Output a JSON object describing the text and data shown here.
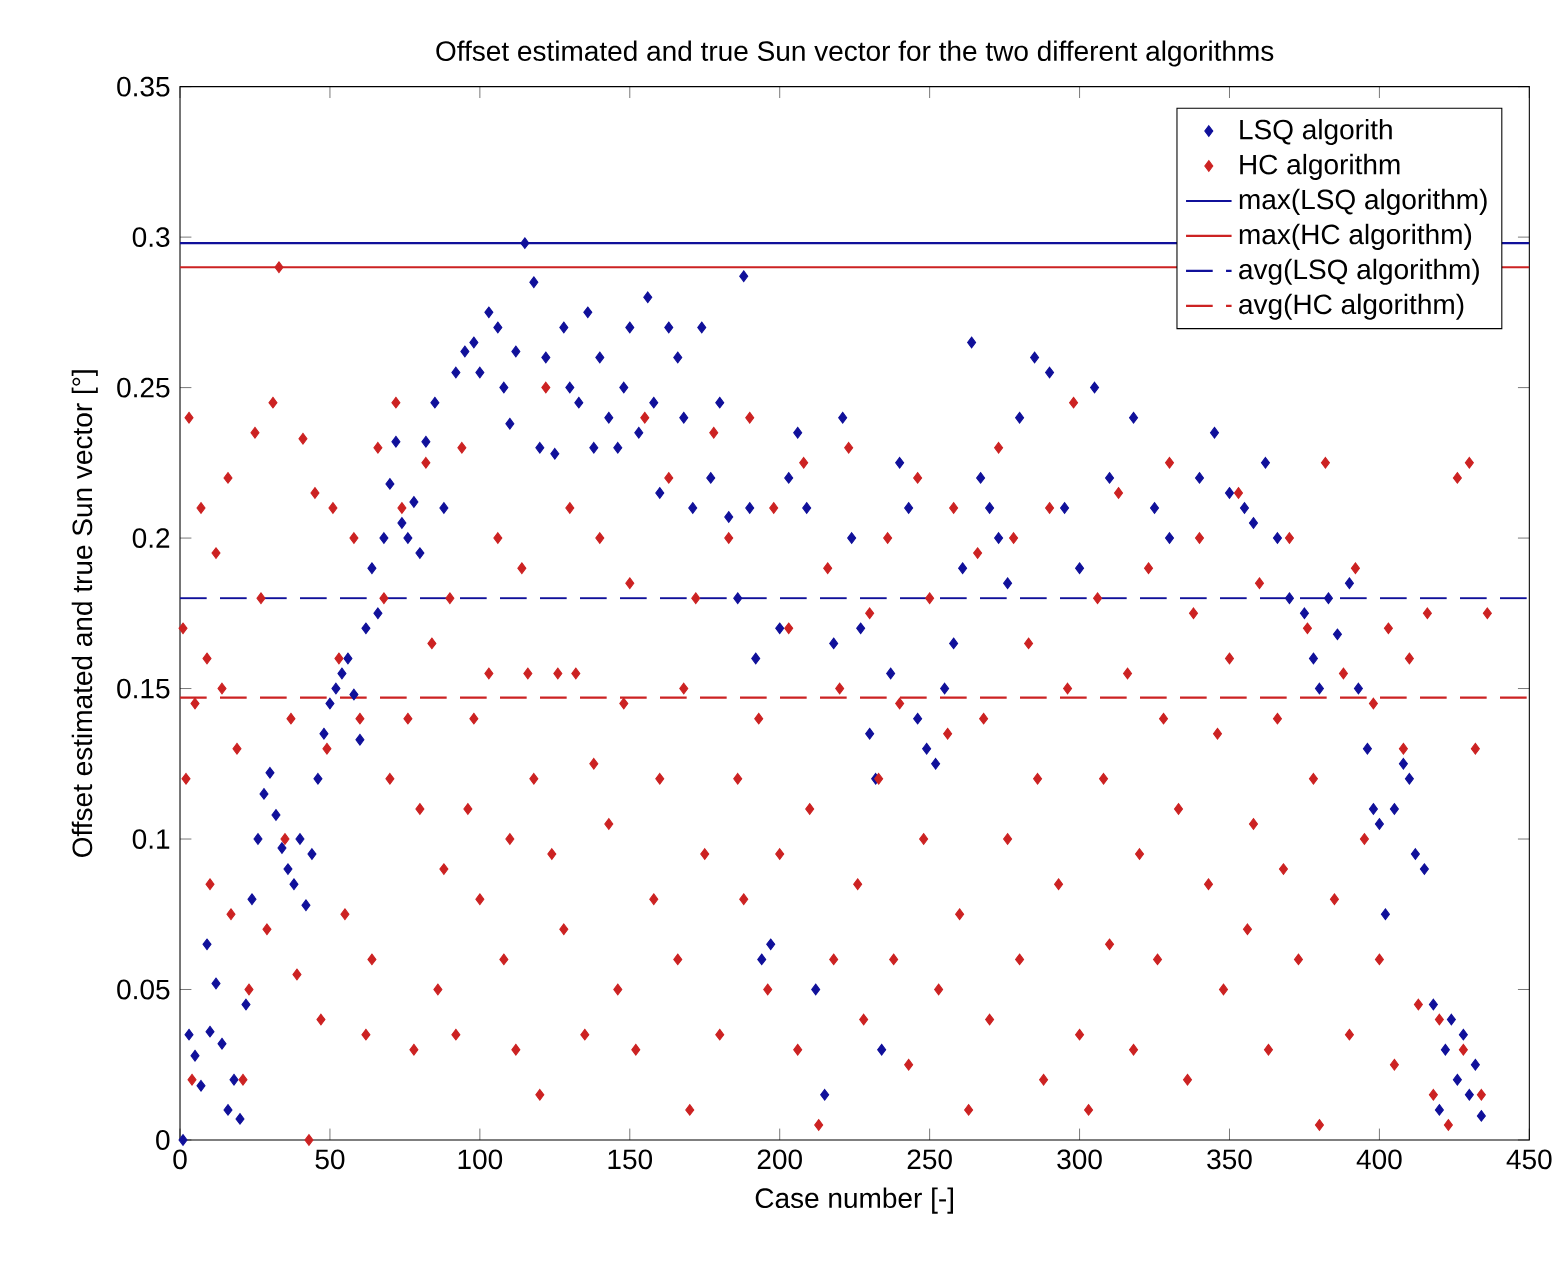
{
  "chart_data": {
    "type": "scatter",
    "title": "Offset estimated and true Sun vector for the two different algorithms",
    "xlabel": "Case number [-]",
    "ylabel": "Offset estimated and true Sun vector [°]",
    "xlim": [
      0,
      450
    ],
    "xticks": [
      0,
      50,
      100,
      150,
      200,
      250,
      300,
      350,
      400,
      450
    ],
    "ylim": [
      0,
      0.35
    ],
    "yticks": [
      0,
      0.05,
      0.1,
      0.15,
      0.2,
      0.25,
      0.3,
      0.35
    ],
    "marker": "diamond",
    "legend": "top right",
    "series": [
      {
        "name": "LSQ algorith",
        "color": "#10109a",
        "x": [
          1,
          3,
          5,
          7,
          9,
          10,
          12,
          14,
          16,
          18,
          20,
          22,
          24,
          26,
          28,
          30,
          32,
          34,
          36,
          38,
          40,
          42,
          44,
          46,
          48,
          50,
          52,
          54,
          56,
          58,
          60,
          62,
          64,
          66,
          68,
          70,
          72,
          74,
          76,
          78,
          80,
          82,
          85,
          88,
          92,
          95,
          98,
          100,
          103,
          106,
          108,
          110,
          112,
          115,
          118,
          120,
          122,
          125,
          128,
          130,
          133,
          136,
          138,
          140,
          143,
          146,
          148,
          150,
          153,
          156,
          158,
          160,
          163,
          166,
          168,
          171,
          174,
          177,
          180,
          183,
          186,
          188,
          190,
          192,
          194,
          197,
          200,
          203,
          206,
          209,
          212,
          215,
          218,
          221,
          224,
          227,
          230,
          232,
          234,
          237,
          240,
          243,
          246,
          249,
          252,
          255,
          258,
          261,
          264,
          267,
          270,
          273,
          276,
          280,
          285,
          290,
          295,
          300,
          305,
          310,
          318,
          325,
          330,
          340,
          345,
          350,
          355,
          358,
          362,
          366,
          370,
          375,
          378,
          380,
          383,
          386,
          390,
          393,
          396,
          398,
          400,
          402,
          405,
          408,
          410,
          412,
          415,
          418,
          420,
          422,
          424,
          426,
          428,
          430,
          432,
          434
        ],
        "values": [
          0.0,
          0.035,
          0.028,
          0.018,
          0.065,
          0.036,
          0.052,
          0.032,
          0.01,
          0.02,
          0.007,
          0.045,
          0.08,
          0.1,
          0.115,
          0.122,
          0.108,
          0.097,
          0.09,
          0.085,
          0.1,
          0.078,
          0.095,
          0.12,
          0.135,
          0.145,
          0.15,
          0.155,
          0.16,
          0.148,
          0.133,
          0.17,
          0.19,
          0.175,
          0.2,
          0.218,
          0.232,
          0.205,
          0.2,
          0.212,
          0.195,
          0.232,
          0.245,
          0.21,
          0.255,
          0.262,
          0.265,
          0.255,
          0.275,
          0.27,
          0.25,
          0.238,
          0.262,
          0.298,
          0.285,
          0.23,
          0.26,
          0.228,
          0.27,
          0.25,
          0.245,
          0.275,
          0.23,
          0.26,
          0.24,
          0.23,
          0.25,
          0.27,
          0.235,
          0.28,
          0.245,
          0.215,
          0.27,
          0.26,
          0.24,
          0.21,
          0.27,
          0.22,
          0.245,
          0.207,
          0.18,
          0.287,
          0.21,
          0.16,
          0.06,
          0.065,
          0.17,
          0.22,
          0.235,
          0.21,
          0.05,
          0.015,
          0.165,
          0.24,
          0.2,
          0.17,
          0.135,
          0.12,
          0.03,
          0.155,
          0.225,
          0.21,
          0.14,
          0.13,
          0.125,
          0.15,
          0.165,
          0.19,
          0.265,
          0.22,
          0.21,
          0.2,
          0.185,
          0.24,
          0.26,
          0.255,
          0.21,
          0.19,
          0.25,
          0.22,
          0.24,
          0.21,
          0.2,
          0.22,
          0.235,
          0.215,
          0.21,
          0.205,
          0.225,
          0.2,
          0.18,
          0.175,
          0.16,
          0.15,
          0.18,
          0.168,
          0.185,
          0.15,
          0.13,
          0.11,
          0.105,
          0.075,
          0.11,
          0.125,
          0.12,
          0.095,
          0.09,
          0.045,
          0.01,
          0.03,
          0.04,
          0.02,
          0.035,
          0.015,
          0.025,
          0.008
        ]
      },
      {
        "name": "HC algorithm",
        "color": "#cc2222",
        "x": [
          1,
          2,
          3,
          4,
          5,
          7,
          9,
          10,
          12,
          14,
          16,
          17,
          19,
          21,
          23,
          25,
          27,
          29,
          31,
          33,
          35,
          37,
          39,
          41,
          43,
          45,
          47,
          49,
          51,
          53,
          55,
          58,
          60,
          62,
          64,
          66,
          68,
          70,
          72,
          74,
          76,
          78,
          80,
          82,
          84,
          86,
          88,
          90,
          92,
          94,
          96,
          98,
          100,
          103,
          106,
          108,
          110,
          112,
          114,
          116,
          118,
          120,
          122,
          124,
          126,
          128,
          130,
          132,
          135,
          138,
          140,
          143,
          146,
          148,
          150,
          152,
          155,
          158,
          160,
          163,
          166,
          168,
          170,
          172,
          175,
          178,
          180,
          183,
          186,
          188,
          190,
          193,
          196,
          198,
          200,
          203,
          206,
          208,
          210,
          213,
          216,
          218,
          220,
          223,
          226,
          228,
          230,
          233,
          236,
          238,
          240,
          243,
          246,
          248,
          250,
          253,
          256,
          258,
          260,
          263,
          266,
          268,
          270,
          273,
          276,
          278,
          280,
          283,
          286,
          288,
          290,
          293,
          296,
          298,
          300,
          303,
          306,
          308,
          310,
          313,
          316,
          318,
          320,
          323,
          326,
          328,
          330,
          333,
          336,
          338,
          340,
          343,
          346,
          348,
          350,
          353,
          356,
          358,
          360,
          363,
          366,
          368,
          370,
          373,
          376,
          378,
          380,
          382,
          385,
          388,
          390,
          392,
          395,
          398,
          400,
          403,
          405,
          408,
          410,
          413,
          416,
          418,
          420,
          423,
          426,
          428,
          430,
          432,
          434,
          436
        ],
        "values": [
          0.17,
          0.12,
          0.24,
          0.02,
          0.145,
          0.21,
          0.16,
          0.085,
          0.195,
          0.15,
          0.22,
          0.075,
          0.13,
          0.02,
          0.05,
          0.235,
          0.18,
          0.07,
          0.245,
          0.29,
          0.1,
          0.14,
          0.055,
          0.233,
          0.0,
          0.215,
          0.04,
          0.13,
          0.21,
          0.16,
          0.075,
          0.2,
          0.14,
          0.035,
          0.06,
          0.23,
          0.18,
          0.12,
          0.245,
          0.21,
          0.14,
          0.03,
          0.11,
          0.225,
          0.165,
          0.05,
          0.09,
          0.18,
          0.035,
          0.23,
          0.11,
          0.14,
          0.08,
          0.155,
          0.2,
          0.06,
          0.1,
          0.03,
          0.19,
          0.155,
          0.12,
          0.015,
          0.25,
          0.095,
          0.155,
          0.07,
          0.21,
          0.155,
          0.035,
          0.125,
          0.2,
          0.105,
          0.05,
          0.145,
          0.185,
          0.03,
          0.24,
          0.08,
          0.12,
          0.22,
          0.06,
          0.15,
          0.01,
          0.18,
          0.095,
          0.235,
          0.035,
          0.2,
          0.12,
          0.08,
          0.24,
          0.14,
          0.05,
          0.21,
          0.095,
          0.17,
          0.03,
          0.225,
          0.11,
          0.005,
          0.19,
          0.06,
          0.15,
          0.23,
          0.085,
          0.04,
          0.175,
          0.12,
          0.2,
          0.06,
          0.145,
          0.025,
          0.22,
          0.1,
          0.18,
          0.05,
          0.135,
          0.21,
          0.075,
          0.01,
          0.195,
          0.14,
          0.04,
          0.23,
          0.1,
          0.2,
          0.06,
          0.165,
          0.12,
          0.02,
          0.21,
          0.085,
          0.15,
          0.245,
          0.035,
          0.01,
          0.18,
          0.12,
          0.065,
          0.215,
          0.155,
          0.03,
          0.095,
          0.19,
          0.06,
          0.14,
          0.225,
          0.11,
          0.02,
          0.175,
          0.2,
          0.085,
          0.135,
          0.05,
          0.16,
          0.215,
          0.07,
          0.105,
          0.185,
          0.03,
          0.14,
          0.09,
          0.2,
          0.06,
          0.17,
          0.12,
          0.005,
          0.225,
          0.08,
          0.155,
          0.035,
          0.19,
          0.1,
          0.145,
          0.06,
          0.17,
          0.025,
          0.13,
          0.16,
          0.045,
          0.175,
          0.015,
          0.04,
          0.005,
          0.22,
          0.03,
          0.225,
          0.13,
          0.015,
          0.175
        ]
      }
    ],
    "ref_lines": [
      {
        "axis": "y",
        "value": 0.298,
        "label": "max(LSQ algorithm)",
        "color": "#10109a",
        "line_style": "solid"
      },
      {
        "axis": "y",
        "value": 0.29,
        "label": "max(HC algorithm)",
        "color": "#cc2222",
        "line_style": "solid"
      },
      {
        "axis": "y",
        "value": 0.18,
        "label": "avg(LSQ algorithm)",
        "color": "#10109a",
        "line_style": "dashed"
      },
      {
        "axis": "y",
        "value": 0.147,
        "label": "avg(HC algorithm)",
        "color": "#cc2222",
        "line_style": "dashed"
      }
    ]
  }
}
